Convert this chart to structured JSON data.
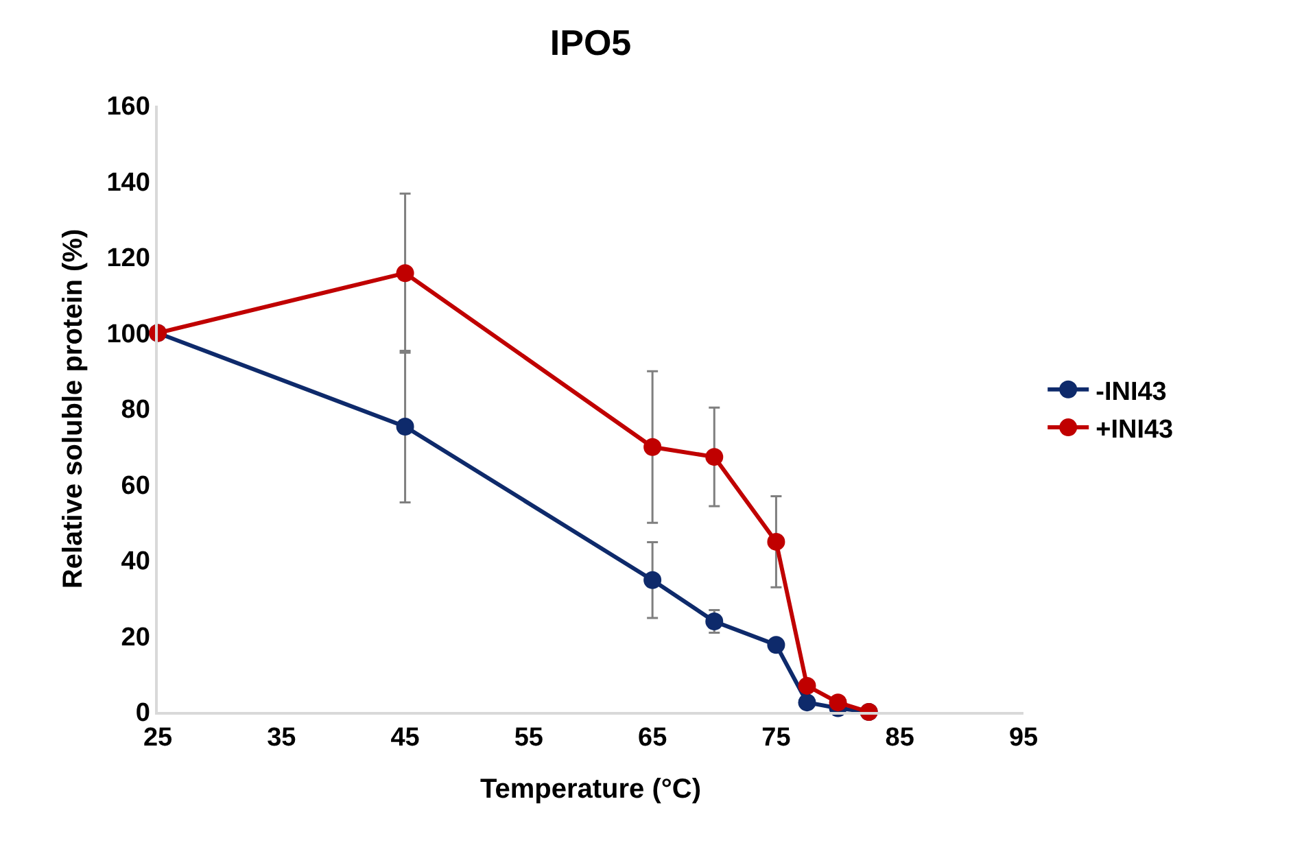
{
  "chart_data": {
    "type": "line",
    "title": "IPO5",
    "xlabel": "Temperature (°C)",
    "ylabel": "Relative soluble protein (%)",
    "x": [
      25,
      45,
      65,
      70,
      75,
      77.5,
      80,
      82.5
    ],
    "series": [
      {
        "name": "-INI43",
        "color": "#0e2a6b",
        "values": [
          100,
          75.3,
          34.8,
          23.9,
          17.7,
          2.5,
          1,
          0
        ],
        "errors": [
          null,
          20,
          10,
          3,
          null,
          null,
          null,
          null
        ]
      },
      {
        "name": "+INI43",
        "color": "#c00000",
        "values": [
          100,
          115.8,
          69.9,
          67.3,
          44.9,
          6.9,
          2.5,
          0
        ],
        "errors": [
          null,
          21,
          20,
          13,
          12,
          null,
          null,
          null
        ]
      }
    ],
    "xlim": [
      25,
      95
    ],
    "xticks": [
      25,
      35,
      45,
      55,
      65,
      75,
      85,
      95
    ],
    "ylim": [
      0,
      160
    ],
    "yticks": [
      0,
      20,
      40,
      60,
      80,
      100,
      120,
      140,
      160
    ],
    "grid": false,
    "legend": "right",
    "marker": "circle",
    "line_style": "solid"
  }
}
